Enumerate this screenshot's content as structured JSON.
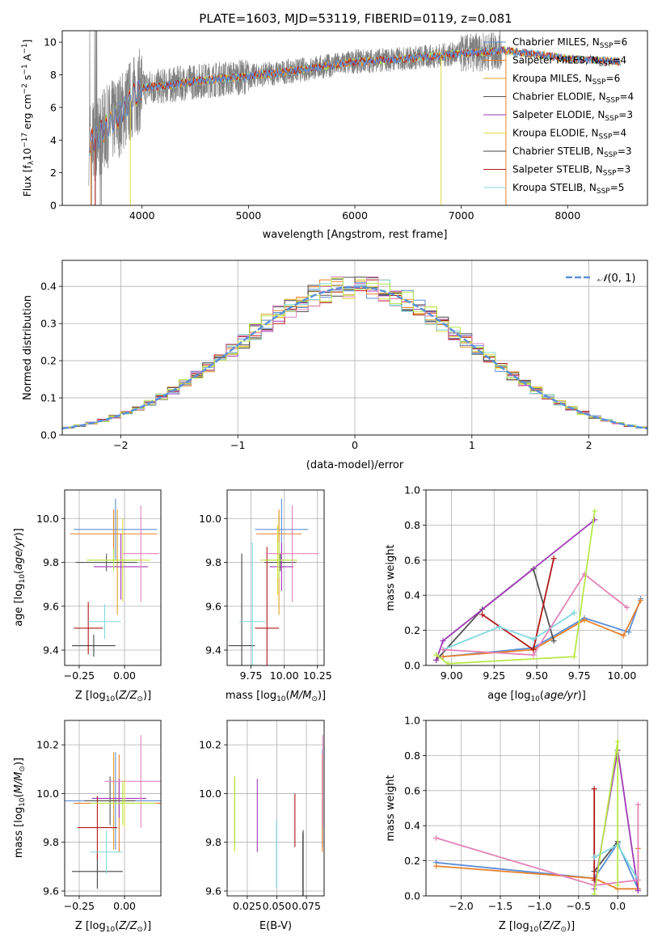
{
  "title": "PLATE=1603, MJD=53119, FIBERID=0119, z=0.081",
  "colors": {
    "chab_miles": "#5b8fd9",
    "salp_miles": "#e8802b",
    "krou_miles": "#e0a020",
    "chab_elodie": "#555555",
    "salp_elodie": "#a03ab5",
    "krou_elodie": "#dddd44",
    "chab_stelib": "#444444",
    "salp_stelib": "#b01818",
    "krou_stelib": "#80d8e0",
    "pink": "#e383b8",
    "lime": "#b8e84a",
    "data": "#808080",
    "gauss": "#5b8fd9",
    "grid": "#b0b0b0"
  },
  "chart_data": [
    {
      "id": "spectrum",
      "type": "line",
      "xlabel": "wavelength [Angstrom, rest frame]",
      "xlim": [
        3250,
        8750
      ],
      "ylim": [
        0,
        10.7
      ],
      "xticks": [
        4000,
        5000,
        6000,
        7000,
        8000
      ],
      "yticks": [
        0,
        2,
        4,
        6,
        8,
        10
      ],
      "legend": [
        {
          "label": "Chabrier MILES, N_SSP=6",
          "color": "chab_miles"
        },
        {
          "label": "Salpeter MILES, N_SSP=4",
          "color": "salp_miles"
        },
        {
          "label": "Kroupa MILES, N_SSP=6",
          "color": "krou_miles"
        },
        {
          "label": "Chabrier ELODIE, N_SSP=4",
          "color": "chab_elodie"
        },
        {
          "label": "Salpeter ELODIE, N_SSP=3",
          "color": "salp_elodie"
        },
        {
          "label": "Kroupa ELODIE, N_SSP=4",
          "color": "krou_elodie"
        },
        {
          "label": "Chabrier STELIB, N_SSP=3",
          "color": "chab_stelib"
        },
        {
          "label": "Salpeter STELIB, N_SSP=3",
          "color": "salp_stelib"
        },
        {
          "label": "Kroupa STELIB, N_SSP=5",
          "color": "krou_stelib"
        }
      ],
      "continuum": [
        [
          3500,
          3.8
        ],
        [
          3600,
          4.3
        ],
        [
          3700,
          5.0
        ],
        [
          3800,
          5.6
        ],
        [
          3900,
          6.5
        ],
        [
          4000,
          7.2
        ],
        [
          4200,
          7.3
        ],
        [
          4500,
          7.6
        ],
        [
          5000,
          7.9
        ],
        [
          5500,
          8.3
        ],
        [
          6000,
          8.8
        ],
        [
          6500,
          9.0
        ],
        [
          7000,
          9.3
        ],
        [
          7400,
          9.5
        ],
        [
          8000,
          9.0
        ],
        [
          8500,
          8.8
        ]
      ],
      "data_range": [
        3500,
        7380
      ],
      "model_ranges": [
        [
          3500,
          7420
        ],
        [
          7300,
          8500
        ]
      ]
    },
    {
      "id": "residuals",
      "type": "line",
      "xlabel": "(data-model)/error",
      "ylabel": "Normed distribution",
      "xlim": [
        -2.5,
        2.5
      ],
      "ylim": [
        0,
        0.47
      ],
      "xticks": [
        -2,
        -1,
        0,
        1,
        2
      ],
      "yticks": [
        0.0,
        0.1,
        0.2,
        0.3,
        0.4
      ],
      "legend": [
        {
          "label": "N(0, 1)",
          "color": "gauss"
        }
      ],
      "bin_width": 0.1
    },
    {
      "id": "age_vs_Z",
      "type": "scatter",
      "xlabel": "Z [log10(Z/Z⊙)]",
      "ylabel": "age  [log10(age/yr)]",
      "xlim": [
        -0.33,
        0.2
      ],
      "ylim": [
        9.33,
        10.13
      ],
      "xticks": [
        -0.25,
        0.0
      ],
      "yticks": [
        9.4,
        9.6,
        9.8,
        10.0
      ],
      "points": [
        {
          "x": -0.05,
          "y": 9.95,
          "xerr": 0.23,
          "yerr": 0.14,
          "color": "chab_miles"
        },
        {
          "x": -0.06,
          "y": 9.93,
          "xerr": 0.24,
          "yerr": 0.11,
          "color": "salp_miles"
        },
        {
          "x": -0.04,
          "y": 9.8,
          "xerr": 0.02,
          "yerr": 0.24,
          "color": "krou_miles"
        },
        {
          "x": -0.1,
          "y": 9.8,
          "xerr": 0.17,
          "yerr": 0.04,
          "color": "chab_elodie"
        },
        {
          "x": -0.02,
          "y": 9.78,
          "xerr": 0.15,
          "yerr": 0.15,
          "color": "salp_elodie"
        },
        {
          "x": -0.01,
          "y": 9.81,
          "xerr": 0.15,
          "yerr": 0.19,
          "color": "krou_elodie"
        },
        {
          "x": -0.17,
          "y": 9.42,
          "xerr": 0.12,
          "yerr": 0.05,
          "color": "chab_stelib"
        },
        {
          "x": -0.2,
          "y": 9.5,
          "xerr": 0.08,
          "yerr": 0.12,
          "color": "salp_stelib"
        },
        {
          "x": -0.11,
          "y": 9.53,
          "xerr": 0.09,
          "yerr": 0.08,
          "color": "krou_stelib"
        },
        {
          "x": 0.09,
          "y": 9.84,
          "xerr": 0.1,
          "yerr": 0.22,
          "color": "pink"
        },
        {
          "x": -0.06,
          "y": 9.81,
          "xerr": 0.15,
          "yerr": 0.05,
          "color": "lime"
        }
      ]
    },
    {
      "id": "age_vs_mass",
      "type": "scatter",
      "xlabel": "mass [log10(M/M⊙)]",
      "xlim": [
        9.57,
        10.3
      ],
      "ylim": [
        9.33,
        10.13
      ],
      "xticks": [
        9.75,
        10.0,
        10.25
      ],
      "yticks": [
        9.4,
        9.6,
        9.8,
        10.0
      ],
      "points": [
        {
          "x": 9.98,
          "y": 9.95,
          "xerr": 0.2,
          "yerr": 0.14,
          "color": "chab_miles"
        },
        {
          "x": 9.96,
          "y": 9.93,
          "xerr": 0.17,
          "yerr": 0.11,
          "color": "salp_miles"
        },
        {
          "x": 9.96,
          "y": 9.8,
          "xerr": 0.02,
          "yerr": 0.24,
          "color": "krou_miles"
        },
        {
          "x": 9.97,
          "y": 9.8,
          "xerr": 0.12,
          "yerr": 0.04,
          "color": "chab_elodie"
        },
        {
          "x": 9.98,
          "y": 9.78,
          "xerr": 0.09,
          "yerr": 0.11,
          "color": "salp_elodie"
        },
        {
          "x": 9.95,
          "y": 9.81,
          "xerr": 0.1,
          "yerr": 0.16,
          "color": "krou_elodie"
        },
        {
          "x": 9.68,
          "y": 9.42,
          "xerr": 0.1,
          "yerr": 0.42,
          "color": "chab_stelib"
        },
        {
          "x": 9.87,
          "y": 9.5,
          "xerr": 0.09,
          "yerr": 0.37,
          "color": "salp_stelib"
        },
        {
          "x": 9.76,
          "y": 9.53,
          "xerr": 0.1,
          "yerr": 0.36,
          "color": "krou_stelib"
        },
        {
          "x": 10.06,
          "y": 9.84,
          "xerr": 0.2,
          "yerr": 0.22,
          "color": "pink"
        },
        {
          "x": 9.96,
          "y": 9.81,
          "xerr": 0.14,
          "yerr": 0.08,
          "color": "lime"
        }
      ]
    },
    {
      "id": "weight_vs_age",
      "type": "line",
      "xlabel": "age  [log10(age/yr)]",
      "ylabel": "mass weight",
      "xlim": [
        8.85,
        10.15
      ],
      "ylim": [
        0,
        1.0
      ],
      "xticks": [
        9.0,
        9.25,
        9.5,
        9.75,
        10.0
      ],
      "yticks": [
        0.0,
        0.2,
        0.4,
        0.6,
        0.8,
        1.0
      ],
      "series": [
        {
          "color": "chab_miles",
          "points": [
            [
              8.95,
              0.05
            ],
            [
              9.48,
              0.1
            ],
            [
              9.78,
              0.27
            ],
            [
              10.04,
              0.19
            ],
            [
              10.11,
              0.38
            ]
          ]
        },
        {
          "color": "salp_miles",
          "points": [
            [
              8.95,
              0.05
            ],
            [
              9.48,
              0.09
            ],
            [
              9.78,
              0.26
            ],
            [
              10.01,
              0.17
            ],
            [
              10.11,
              0.37
            ]
          ]
        },
        {
          "color": "chab_elodie",
          "points": [
            [
              8.91,
              0.03
            ],
            [
              9.18,
              0.32
            ],
            [
              9.48,
              0.55
            ],
            [
              9.6,
              0.14
            ]
          ]
        },
        {
          "color": "salp_elodie",
          "points": [
            [
              8.91,
              0.03
            ],
            [
              8.95,
              0.14
            ],
            [
              9.84,
              0.83
            ]
          ]
        },
        {
          "color": "salp_stelib",
          "points": [
            [
              9.18,
              0.29
            ],
            [
              9.48,
              0.09
            ],
            [
              9.6,
              0.61
            ]
          ]
        },
        {
          "color": "krou_stelib",
          "points": [
            [
              8.95,
              0.09
            ],
            [
              9.28,
              0.22
            ],
            [
              9.48,
              0.15
            ],
            [
              9.72,
              0.3
            ]
          ]
        },
        {
          "color": "pink",
          "points": [
            [
              8.95,
              0.09
            ],
            [
              9.48,
              0.06
            ],
            [
              9.78,
              0.52
            ],
            [
              10.03,
              0.33
            ]
          ]
        },
        {
          "color": "lime",
          "points": [
            [
              8.91,
              0.06
            ],
            [
              8.98,
              0.01
            ],
            [
              9.72,
              0.05
            ],
            [
              9.84,
              0.88
            ]
          ]
        }
      ]
    },
    {
      "id": "mass_vs_Z",
      "type": "scatter",
      "xlabel": "Z [log10(Z/Z⊙)]",
      "ylabel": "mass [log10(M/M⊙)]",
      "xlim": [
        -0.33,
        0.2
      ],
      "ylim": [
        9.58,
        10.3
      ],
      "xticks": [
        -0.25,
        0.0
      ],
      "yticks": [
        9.6,
        9.8,
        10.0,
        10.2
      ],
      "points": [
        {
          "x": -0.05,
          "y": 9.97,
          "xerr": 0.3,
          "yerr": 0.2,
          "color": "chab_miles"
        },
        {
          "x": -0.03,
          "y": 9.96,
          "xerr": 0.25,
          "yerr": 0.2,
          "color": "salp_miles"
        },
        {
          "x": -0.06,
          "y": 9.97,
          "xerr": 0.02,
          "yerr": 0.2,
          "color": "krou_miles"
        },
        {
          "x": -0.08,
          "y": 9.97,
          "xerr": 0.14,
          "yerr": 0.1,
          "color": "chab_elodie"
        },
        {
          "x": -0.03,
          "y": 9.98,
          "xerr": 0.15,
          "yerr": 0.08,
          "color": "salp_elodie"
        },
        {
          "x": 0.0,
          "y": 9.96,
          "xerr": 0.12,
          "yerr": 0.1,
          "color": "krou_elodie"
        },
        {
          "x": -0.15,
          "y": 9.68,
          "xerr": 0.14,
          "yerr": 0.07,
          "color": "chab_stelib"
        },
        {
          "x": -0.15,
          "y": 9.86,
          "xerr": 0.11,
          "yerr": 0.13,
          "color": "salp_stelib"
        },
        {
          "x": -0.1,
          "y": 9.76,
          "xerr": 0.09,
          "yerr": 0.09,
          "color": "krou_stelib"
        },
        {
          "x": 0.09,
          "y": 10.05,
          "xerr": 0.2,
          "yerr": 0.19,
          "color": "pink"
        },
        {
          "x": -0.01,
          "y": 9.96,
          "xerr": 0.18,
          "yerr": 0.09,
          "color": "lime"
        }
      ]
    },
    {
      "id": "mass_vs_ebv",
      "type": "scatter",
      "xlabel": "E(B-V)",
      "xlim": [
        0.008,
        0.09
      ],
      "ylim": [
        9.58,
        10.3
      ],
      "xticks": [
        0.025,
        0.05,
        0.075
      ],
      "yticks": [
        9.6,
        9.8,
        10.0,
        10.2
      ],
      "points": [
        {
          "x": 0.0885,
          "y": 9.98,
          "yerr": 0.2,
          "color": "chab_miles"
        },
        {
          "x": 0.0885,
          "y": 9.96,
          "yerr": 0.2,
          "color": "salp_miles"
        },
        {
          "x": 0.0143,
          "y": 9.93,
          "yerr": 0.14,
          "color": "krou_miles"
        },
        {
          "x": 0.0723,
          "y": 9.68,
          "yerr": 0.17,
          "color": "chab_elodie"
        },
        {
          "x": 0.0335,
          "y": 9.91,
          "yerr": 0.15,
          "color": "salp_elodie"
        },
        {
          "x": 0.0143,
          "y": 9.91,
          "yerr": 0.15,
          "color": "krou_elodie"
        },
        {
          "x": 0.072,
          "y": 9.7,
          "yerr": 0.14,
          "color": "chab_stelib"
        },
        {
          "x": 0.0653,
          "y": 9.89,
          "yerr": 0.11,
          "color": "salp_stelib"
        },
        {
          "x": 0.0497,
          "y": 9.75,
          "yerr": 0.14,
          "color": "krou_stelib"
        },
        {
          "x": 0.0888,
          "y": 10.05,
          "yerr": 0.19,
          "color": "pink"
        },
        {
          "x": 0.0145,
          "y": 9.92,
          "yerr": 0.15,
          "color": "lime"
        }
      ]
    },
    {
      "id": "weight_vs_Z",
      "type": "line",
      "xlabel": "Z [log10(Z/Z⊙)]",
      "ylabel": "mass weight",
      "xlim": [
        -2.45,
        0.38
      ],
      "ylim": [
        0,
        1.0
      ],
      "xticks": [
        -2.0,
        -1.5,
        -1.0,
        -0.5,
        0.0
      ],
      "yticks": [
        0.0,
        0.2,
        0.4,
        0.6,
        0.8,
        1.0
      ],
      "series": [
        {
          "color": "chab_miles",
          "points": [
            [
              -2.32,
              0.19
            ],
            [
              -0.3,
              0.1
            ],
            [
              0.0,
              0.3
            ],
            [
              0.26,
              0.04
            ]
          ]
        },
        {
          "color": "salp_miles",
          "points": [
            [
              -2.32,
              0.17
            ],
            [
              -0.3,
              0.1
            ],
            [
              0.0,
              0.04
            ],
            [
              0.26,
              0.04
            ],
            [
              0.26,
              0.27
            ]
          ]
        },
        {
          "color": "chab_elodie",
          "points": [
            [
              -0.3,
              0.14
            ],
            [
              0.0,
              0.31
            ]
          ]
        },
        {
          "color": "salp_elodie",
          "points": [
            [
              -0.3,
              0.04
            ],
            [
              0.0,
              0.83
            ],
            [
              0.26,
              0.03
            ]
          ]
        },
        {
          "color": "salp_stelib",
          "points": [
            [
              -0.3,
              0.09
            ],
            [
              -0.3,
              0.61
            ]
          ]
        },
        {
          "color": "krou_stelib",
          "points": [
            [
              -0.3,
              0.22
            ],
            [
              0.0,
              0.29
            ],
            [
              0.26,
              0.09
            ]
          ]
        },
        {
          "color": "pink",
          "points": [
            [
              -2.32,
              0.33
            ],
            [
              -0.3,
              0.06
            ],
            [
              0.26,
              0.09
            ],
            [
              0.26,
              0.52
            ]
          ]
        },
        {
          "color": "lime",
          "points": [
            [
              -0.3,
              0.01
            ],
            [
              0.0,
              0.88
            ],
            [
              0.0,
              0.06
            ]
          ]
        }
      ]
    }
  ]
}
